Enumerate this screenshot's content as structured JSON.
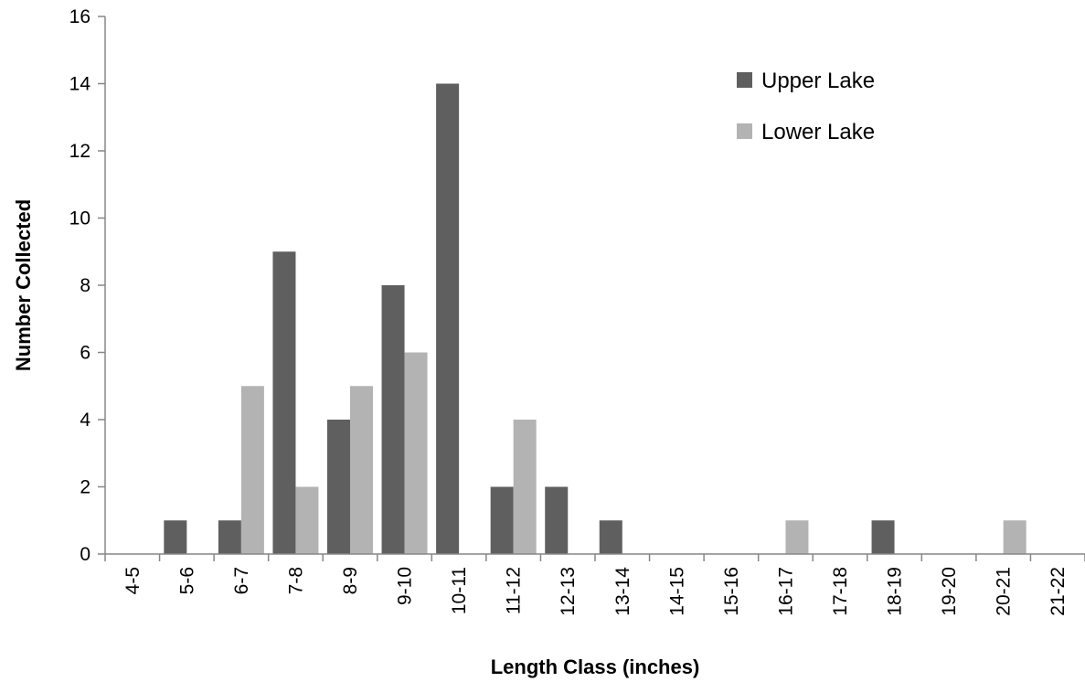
{
  "chart_data": {
    "type": "bar",
    "title": "",
    "xlabel": "Length Class (inches)",
    "ylabel": "Number Collected",
    "ylim": [
      0,
      16
    ],
    "yticks": [
      0,
      2,
      4,
      6,
      8,
      10,
      12,
      14,
      16
    ],
    "grid": false,
    "legend_position": "top-right",
    "categories": [
      "4-5",
      "5-6",
      "6-7",
      "7-8",
      "8-9",
      "9-10",
      "10-11",
      "11-12",
      "12-13",
      "13-14",
      "14-15",
      "15-16",
      "16-17",
      "17-18",
      "18-19",
      "19-20",
      "20-21",
      "21-22"
    ],
    "series": [
      {
        "name": "Upper Lake",
        "color": "#5f5f5f",
        "values": [
          0,
          1,
          1,
          9,
          4,
          8,
          14,
          2,
          2,
          1,
          0,
          0,
          0,
          0,
          1,
          0,
          0,
          0
        ]
      },
      {
        "name": "Lower Lake",
        "color": "#b3b3b3",
        "values": [
          0,
          0,
          5,
          2,
          5,
          6,
          0,
          4,
          0,
          0,
          0,
          0,
          1,
          0,
          0,
          0,
          1,
          0
        ]
      }
    ]
  }
}
